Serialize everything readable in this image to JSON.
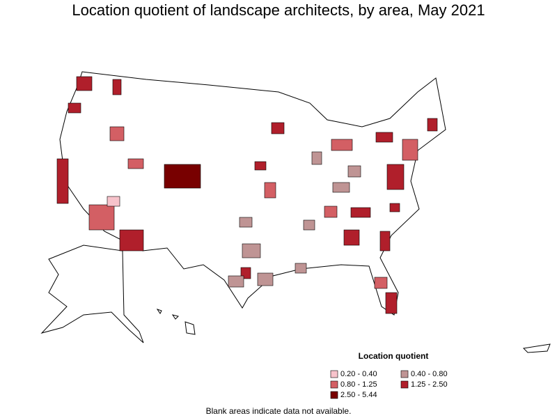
{
  "title": "Location quotient of landscape architects, by area, May 2021",
  "legend": {
    "title": "Location quotient",
    "items": [
      {
        "label": "0.20 - 0.40",
        "color": "#f7c3cb"
      },
      {
        "label": "0.40 - 0.80",
        "color": "#bf9494"
      },
      {
        "label": "0.80 - 1.25",
        "color": "#d35f64"
      },
      {
        "label": "1.25 - 2.50",
        "color": "#b01f2b"
      },
      {
        "label": "2.50 - 5.44",
        "color": "#780000"
      }
    ]
  },
  "footnote": "Blank areas indicate data not available."
}
